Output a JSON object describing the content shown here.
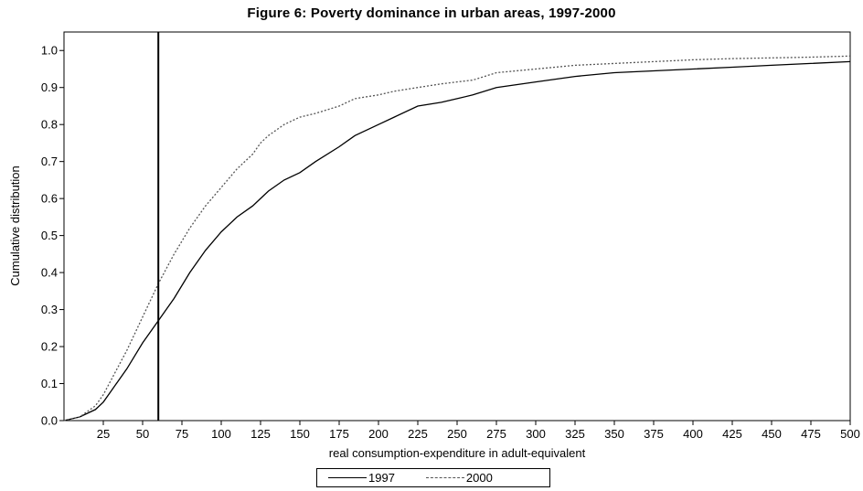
{
  "chart_data": {
    "type": "line",
    "title": "Figure 6: Poverty dominance in urban areas, 1997-2000",
    "xlabel": "real consumption-expenditure in adult-equivalent",
    "ylabel": "Cumulative distribution",
    "xlim": [
      0,
      500
    ],
    "ylim": [
      0,
      1.05
    ],
    "x_ticks": [
      "25",
      "50",
      "75",
      "100",
      "125",
      "150",
      "175",
      "200",
      "225",
      "250",
      "275",
      "300",
      "325",
      "350",
      "375",
      "400",
      "425",
      "450",
      "475",
      "500"
    ],
    "y_ticks": [
      "0.0",
      "0.1",
      "0.2",
      "0.3",
      "0.4",
      "0.5",
      "0.6",
      "0.7",
      "0.8",
      "0.9",
      "1.0"
    ],
    "grid": false,
    "legend_position": "bottom-center",
    "reference_line_x": 60,
    "series": [
      {
        "name": "1997",
        "style": "solid",
        "color": "#000000",
        "x": [
          0,
          10,
          20,
          25,
          30,
          40,
          50,
          60,
          70,
          80,
          90,
          100,
          110,
          120,
          125,
          130,
          140,
          150,
          160,
          175,
          185,
          200,
          210,
          225,
          240,
          250,
          260,
          275,
          300,
          325,
          350,
          375,
          400,
          425,
          450,
          475,
          500
        ],
        "y": [
          0.0,
          0.01,
          0.03,
          0.05,
          0.08,
          0.14,
          0.21,
          0.27,
          0.33,
          0.4,
          0.46,
          0.51,
          0.55,
          0.58,
          0.6,
          0.62,
          0.65,
          0.67,
          0.7,
          0.74,
          0.77,
          0.8,
          0.82,
          0.85,
          0.86,
          0.87,
          0.88,
          0.9,
          0.915,
          0.93,
          0.94,
          0.945,
          0.95,
          0.955,
          0.96,
          0.965,
          0.97
        ]
      },
      {
        "name": "2000",
        "style": "dotted",
        "color": "#555555",
        "x": [
          0,
          10,
          20,
          25,
          30,
          40,
          50,
          60,
          70,
          80,
          90,
          100,
          110,
          120,
          125,
          130,
          140,
          150,
          160,
          175,
          185,
          200,
          210,
          225,
          240,
          250,
          260,
          275,
          300,
          325,
          350,
          375,
          400,
          425,
          450,
          475,
          500
        ],
        "y": [
          0.0,
          0.01,
          0.04,
          0.07,
          0.11,
          0.19,
          0.28,
          0.37,
          0.45,
          0.52,
          0.58,
          0.63,
          0.68,
          0.72,
          0.75,
          0.77,
          0.8,
          0.82,
          0.83,
          0.85,
          0.87,
          0.88,
          0.89,
          0.9,
          0.91,
          0.915,
          0.92,
          0.94,
          0.95,
          0.96,
          0.965,
          0.97,
          0.975,
          0.978,
          0.98,
          0.982,
          0.985
        ]
      }
    ]
  }
}
